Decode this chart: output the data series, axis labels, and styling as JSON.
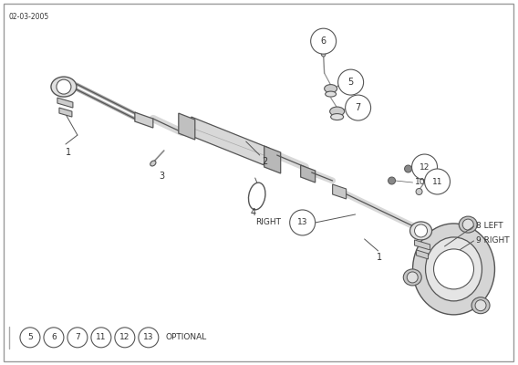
{
  "bg_color": "#ffffff",
  "border_color": "#aaaaaa",
  "line_color": "#555555",
  "dark_color": "#333333",
  "gray1": "#cccccc",
  "gray2": "#e0e0e0",
  "gray3": "#aaaaaa",
  "date_text": "02-03-2005",
  "optional_numbers": [
    "5",
    "6",
    "7",
    "11",
    "12",
    "13"
  ],
  "optional_label": "OPTIONAL"
}
